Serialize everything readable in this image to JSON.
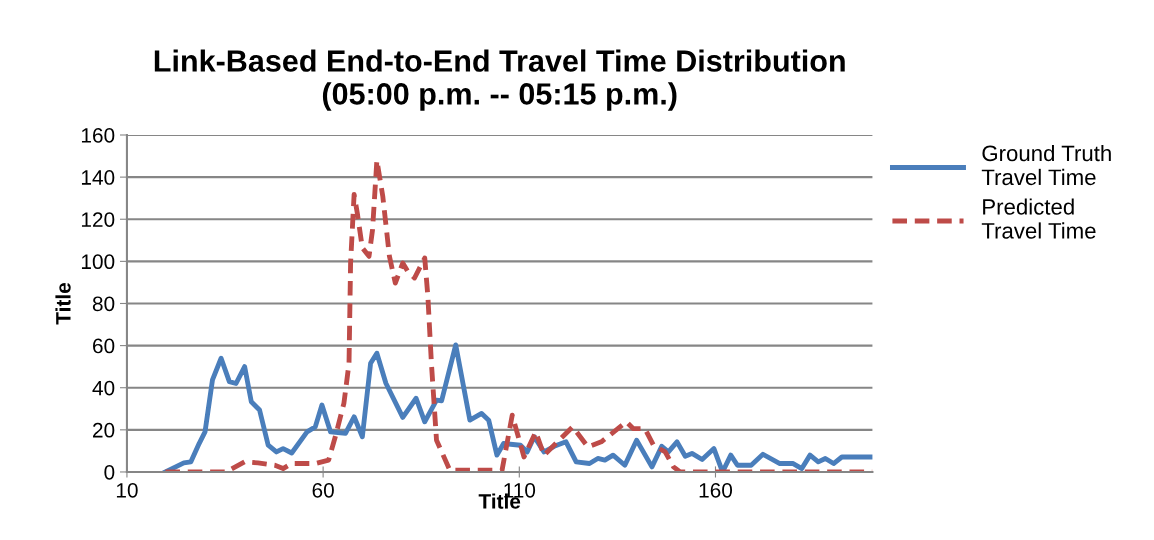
{
  "chart_data": {
    "type": "line",
    "title": "Link-Based End-to-End Travel Time Distribution\n(05:00 p.m. -- 05:15 p.m.)",
    "xlabel": "Title",
    "ylabel": "Title",
    "xlim": [
      10,
      200
    ],
    "xticks": [
      10,
      60,
      110,
      160
    ],
    "ylim": [
      0,
      160
    ],
    "yticks": [
      0,
      20,
      40,
      60,
      80,
      100,
      120,
      140,
      160
    ],
    "grid": "y",
    "legend": "right",
    "series": [
      {
        "name": "Ground Truth\nTravel Time",
        "color": "#4a7ebb",
        "line_style": "solid",
        "x": [
          19.8,
          24.5,
          26.3,
          28.4,
          29.9,
          31.8,
          34,
          36.1,
          37.8,
          40,
          41.7,
          43.8,
          46,
          48.1,
          49.8,
          52,
          55.9,
          58,
          59.7,
          61.9,
          65.7,
          67.9,
          70,
          72.1,
          73.7,
          76,
          80.3,
          83.7,
          85.9,
          88.9,
          90.2,
          93.8,
          97.4,
          100.4,
          102.2,
          104.3,
          106,
          110.3,
          112,
          113.8,
          116.3,
          118.9,
          121.9,
          124.5,
          127.9,
          130,
          131.8,
          133.9,
          136.9,
          139.9,
          143.8,
          146.3,
          148,
          150.2,
          152.3,
          154,
          156.6,
          159.6,
          161.8,
          163.9,
          165.6,
          169.1,
          172.1,
          176.4,
          179.8,
          182,
          184.1,
          186.2,
          188,
          190.1,
          192.2,
          200
        ],
        "values": [
          0,
          4.3,
          4.8,
          13.5,
          19,
          43.7,
          54,
          42.9,
          42,
          50,
          33.3,
          29.4,
          12.7,
          9.5,
          11.1,
          9,
          19,
          21.4,
          31.8,
          19,
          18.3,
          26.2,
          16.7,
          51.6,
          56.4,
          42.1,
          25.9,
          35,
          23.8,
          34.1,
          33.8,
          60.3,
          24.6,
          27.8,
          24.6,
          8,
          13.5,
          12.7,
          9.5,
          16.7,
          9.5,
          12.2,
          14.3,
          4.8,
          4,
          6.4,
          5.6,
          8,
          3.2,
          15.1,
          2.4,
          12.2,
          9.5,
          14.3,
          7.5,
          8.8,
          5.9,
          11.1,
          0,
          8,
          3.2,
          3.2,
          8.4,
          4,
          4,
          1.6,
          8,
          4.8,
          6.4,
          4,
          7.1,
          7.1
        ]
      },
      {
        "name": "Predicted\nTravel Time",
        "color": "#be4b48",
        "line_style": "dashed",
        "x": [
          19.8,
          35.3,
          40,
          43.4,
          47.7,
          49.8,
          52,
          58,
          61.4,
          63.1,
          65.3,
          66.6,
          67,
          67.9,
          68.7,
          70,
          71.7,
          72.6,
          73.7,
          75.2,
          76.9,
          78.4,
          80.3,
          81.6,
          83.3,
          85.9,
          86.7,
          87.6,
          88.9,
          92.3,
          98.3,
          102.6,
          105.6,
          108.2,
          111.2,
          114.2,
          116.3,
          119.7,
          123.6,
          127.5,
          130.9,
          137.3,
          139,
          142,
          144.2,
          147.2,
          149.3,
          151,
          200
        ],
        "values": [
          0,
          0,
          4.8,
          4.3,
          3.2,
          1.6,
          4,
          4,
          5.6,
          16.7,
          32.6,
          51.6,
          99.2,
          131.8,
          123,
          106.4,
          102.4,
          115.1,
          148,
          131,
          102.4,
          89.7,
          99.2,
          95.2,
          92.1,
          101.6,
          83.3,
          51.6,
          15.1,
          0.8,
          0.8,
          0.8,
          0.8,
          27,
          7.1,
          19,
          7.9,
          14.3,
          21.4,
          11.9,
          14.3,
          23.8,
          20.6,
          20.6,
          12.7,
          9.5,
          2.4,
          0,
          0
        ]
      }
    ]
  }
}
